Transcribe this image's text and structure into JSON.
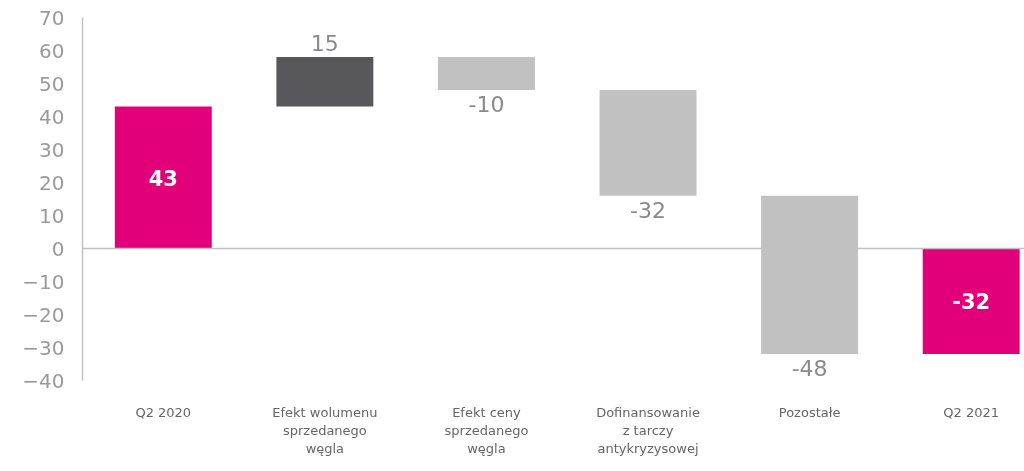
{
  "chart_data": {
    "type": "bar",
    "categories": [
      "Q2 2020",
      "Efekt wolumenu\nsprzedanego\nwęgla",
      "Efekt ceny\nsprzedanego\nwęgla",
      "Dofinansowanie\nz tarczy\nantykryzysowej",
      "Pozostałe",
      "Q2 2021"
    ],
    "values": [
      43,
      15,
      -10,
      -32,
      -48,
      -32
    ],
    "base": [
      0,
      43,
      58,
      48,
      16,
      0
    ],
    "colors": [
      "#e2007a",
      "#58585a",
      "#c1c1c1",
      "#c1c1c1",
      "#c1c1c1",
      "#e2007a"
    ],
    "ylim": [
      -40,
      70
    ],
    "yticks": [
      -40,
      -30,
      -20,
      -10,
      0,
      10,
      20,
      30,
      40,
      50,
      60,
      70
    ],
    "ref_lines": [
      {
        "axis": "y",
        "value": 0,
        "color": "#c1c1c1"
      }
    ],
    "data_labels": true
  }
}
